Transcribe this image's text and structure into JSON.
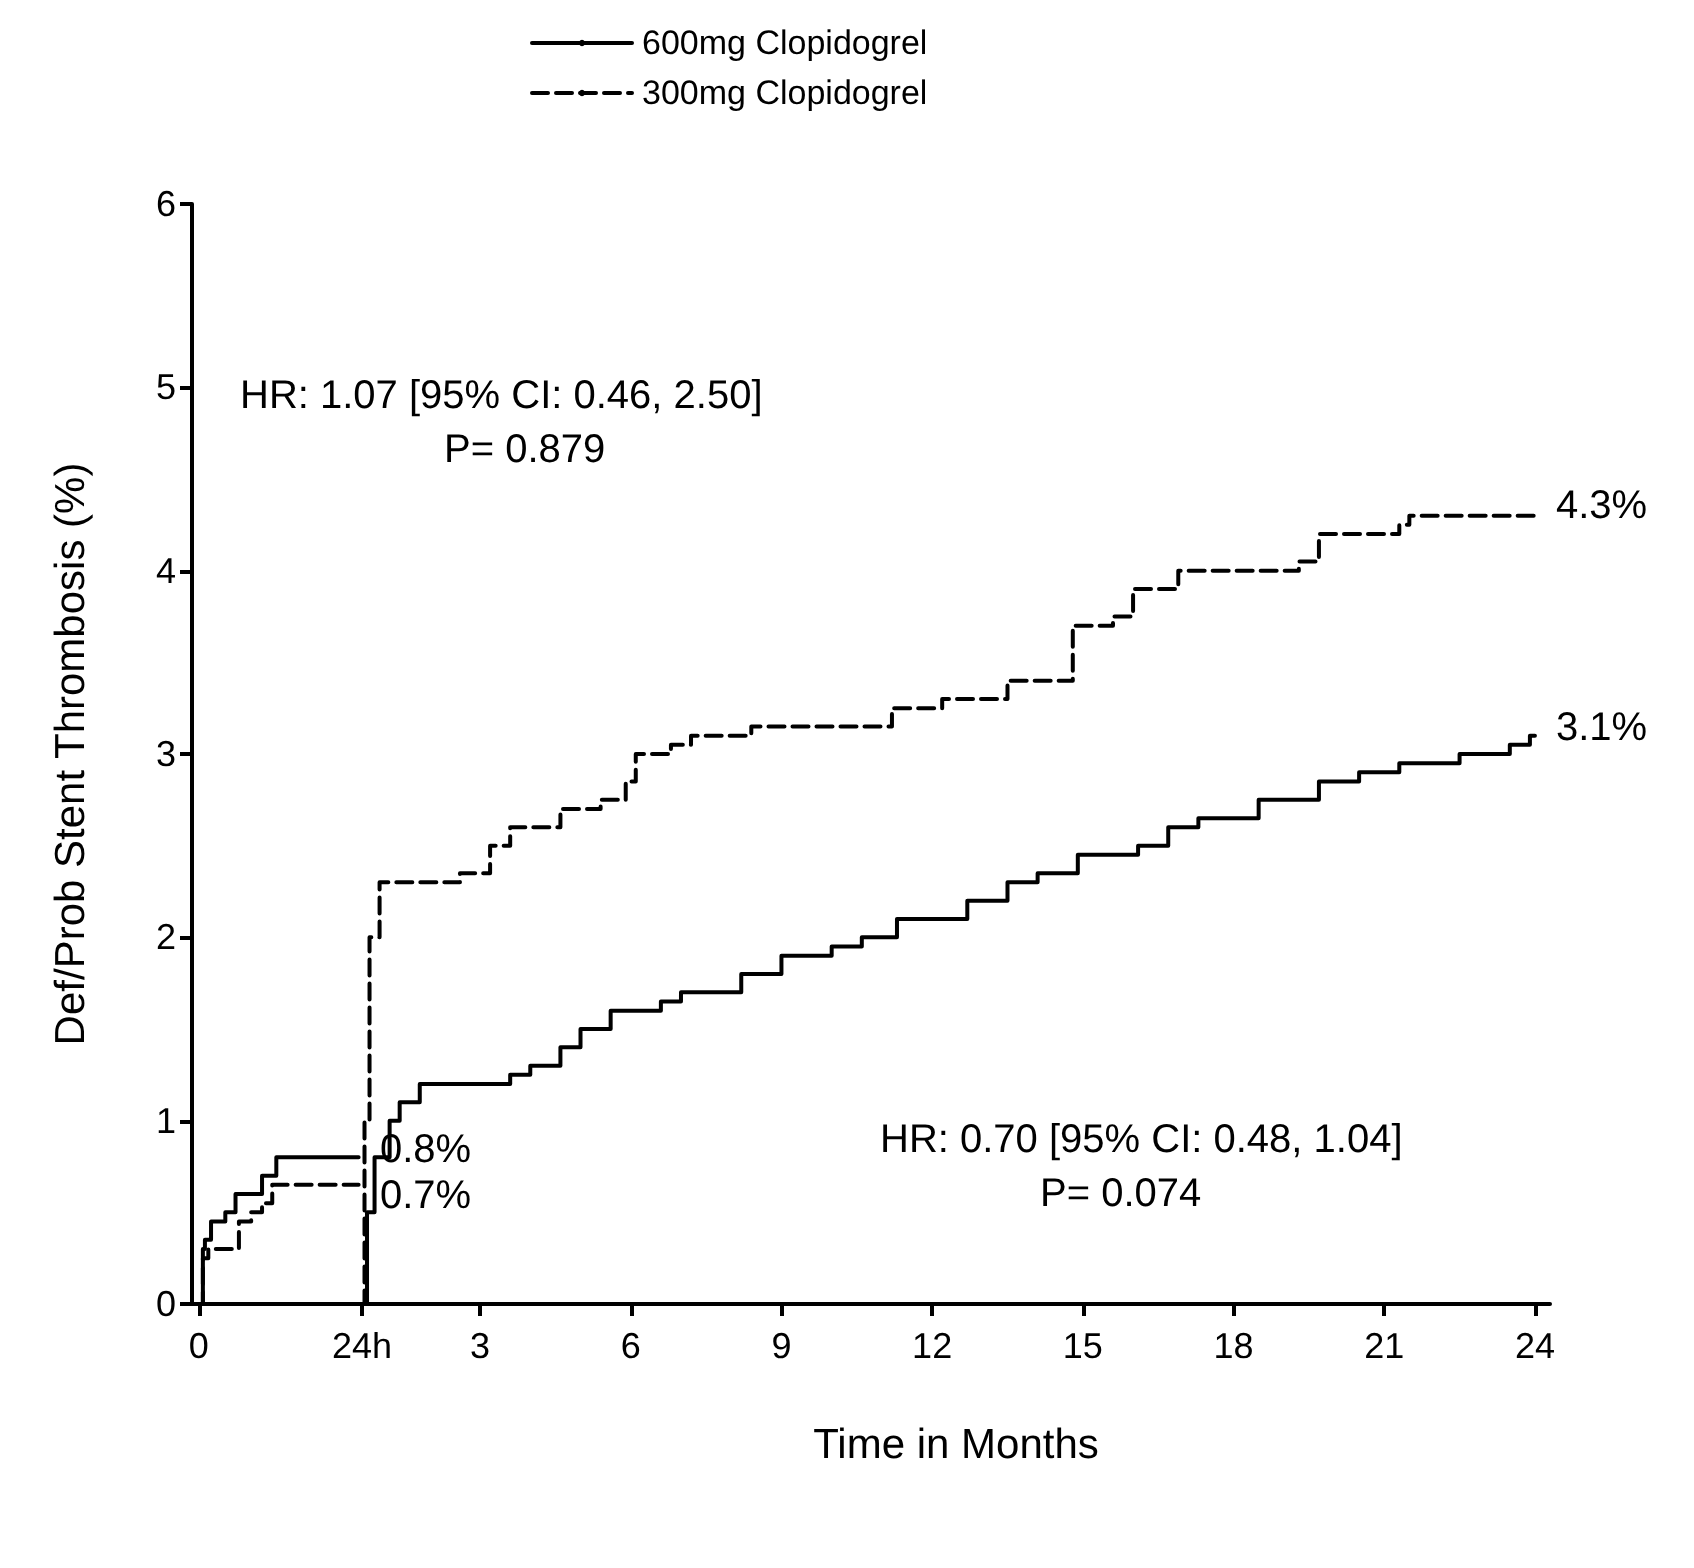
{
  "chart_data": [
    {
      "type": "step",
      "ylabel": "Def/Prob Stent Thrombosis (%)",
      "xlim": [
        -1,
        24
      ],
      "xticks": [
        0,
        {
          "value": 24,
          "label": "24h"
        }
      ],
      "ylim": [
        0,
        6
      ],
      "yticks": [
        0,
        1,
        2,
        3,
        4,
        5,
        6
      ],
      "grid": false,
      "legend": "top",
      "marker": "none",
      "series": [
        {
          "name": "600mg Clopidogrel",
          "color": "#000000",
          "line_style": "solid",
          "x": [
            0,
            0.6,
            0.9,
            1.8,
            3.9,
            5.4,
            9.3,
            11.4,
            23.5
          ],
          "values": [
            0,
            0.3,
            0.35,
            0.45,
            0.5,
            0.6,
            0.7,
            0.8,
            0.8
          ]
        },
        {
          "name": "300mg Clopidogrel",
          "color": "#000000",
          "line_style": "dashed",
          "x": [
            0,
            0.6,
            1.4,
            5.9,
            7.7,
            9.3,
            10.8,
            23.5
          ],
          "values": [
            0,
            0.25,
            0.3,
            0.45,
            0.5,
            0.55,
            0.65,
            0.65
          ]
        }
      ],
      "annotations": [
        "HR: 1.07 [95% CI: 0.46, 2.50]",
        "P= 0.879",
        "0.8%",
        "0.7%"
      ]
    },
    {
      "type": "step",
      "xlabel": "Time in Months",
      "xlim": [
        0.65,
        24.3
      ],
      "xticks": [
        3,
        6,
        9,
        12,
        15,
        18,
        21,
        24
      ],
      "ylim": [
        0,
        6
      ],
      "tick_labels": "x",
      "grid": false,
      "marker": "none",
      "series": [
        {
          "color": "#000000",
          "line_style": "solid",
          "x": [
            0.65,
            0.75,
            0.9,
            1.2,
            1.4,
            1.8,
            3.6,
            4.0,
            4.6,
            5.0,
            5.6,
            6.6,
            7.0,
            8.2,
            9.0,
            10.0,
            10.6,
            11.3,
            12.7,
            13.5,
            14.1,
            14.9,
            16.1,
            16.7,
            17.3,
            18.5,
            19.7,
            20.5,
            21.3,
            22.5,
            23.5,
            23.9,
            24.0
          ],
          "values": [
            0,
            0.5,
            0.8,
            1.0,
            1.1,
            1.2,
            1.25,
            1.3,
            1.4,
            1.5,
            1.6,
            1.65,
            1.7,
            1.8,
            1.9,
            1.95,
            2.0,
            2.1,
            2.2,
            2.3,
            2.35,
            2.45,
            2.5,
            2.6,
            2.65,
            2.75,
            2.85,
            2.9,
            2.95,
            3.0,
            3.05,
            3.1,
            3.1
          ]
        },
        {
          "color": "#000000",
          "line_style": "dashed",
          "x": [
            0.65,
            0.7,
            0.8,
            1.0,
            2.6,
            3.2,
            3.6,
            4.6,
            5.4,
            5.9,
            6.1,
            6.8,
            7.2,
            8.4,
            11.2,
            12.2,
            13.5,
            14.8,
            15.6,
            16.0,
            16.9,
            19.3,
            19.7,
            21.3,
            21.5,
            24.0
          ],
          "values": [
            0,
            1.0,
            2.0,
            2.3,
            2.35,
            2.5,
            2.6,
            2.7,
            2.75,
            2.85,
            3.0,
            3.05,
            3.1,
            3.15,
            3.25,
            3.3,
            3.4,
            3.7,
            3.75,
            3.9,
            4.0,
            4.05,
            4.2,
            4.25,
            4.3,
            4.3
          ]
        }
      ],
      "annotations": [
        "HR: 0.70 [95% CI: 0.48, 1.04]",
        "P= 0.074",
        "4.3%",
        "3.1%"
      ]
    }
  ]
}
